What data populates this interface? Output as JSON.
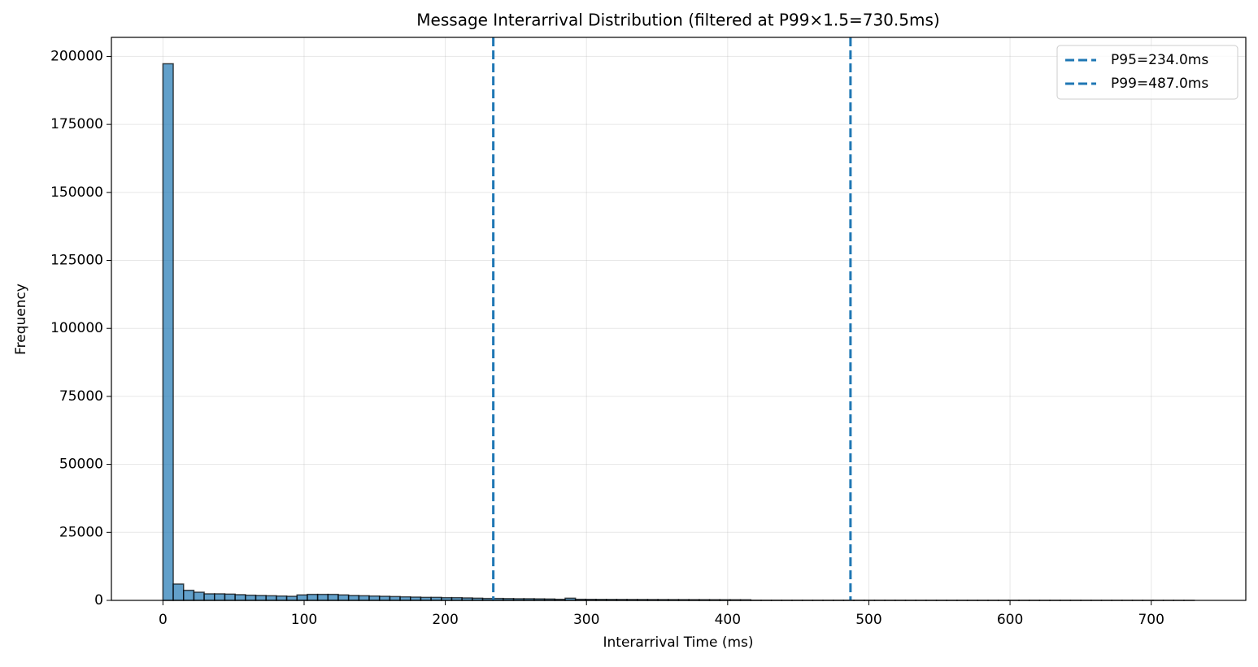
{
  "chart_data": {
    "type": "histogram",
    "title": "Message Interarrival Distribution (filtered at P99×1.5=730.5ms)",
    "xlabel": "Interarrival Time (ms)",
    "ylabel": "Frequency",
    "bins": [
      0,
      7.305,
      14.61,
      21.915,
      29.22,
      36.525,
      43.83,
      51.135,
      58.44,
      65.745,
      73.05,
      80.355,
      87.66,
      94.965,
      102.27,
      109.575,
      116.88,
      124.185,
      131.49,
      138.795,
      146.1,
      153.405,
      160.71,
      168.015,
      175.32,
      182.625,
      189.93,
      197.235,
      204.54,
      211.845,
      219.15,
      226.455,
      233.76,
      241.065,
      248.37,
      255.675,
      262.98,
      270.285,
      277.59,
      284.895,
      292.2,
      299.505,
      306.81,
      314.115,
      321.42,
      328.725,
      336.03,
      343.335,
      350.64,
      357.945,
      365.25,
      372.555,
      379.86,
      387.165,
      394.47,
      401.775,
      409.08,
      416.385,
      423.69,
      430.995,
      438.3,
      445.605,
      452.91,
      460.215,
      467.52,
      474.825,
      482.13,
      489.435,
      496.74,
      504.045,
      511.35,
      518.655,
      525.96,
      533.265,
      540.57,
      547.875,
      555.18,
      562.485,
      569.79,
      577.095,
      584.4,
      591.705,
      599.01,
      606.315,
      613.62,
      620.925,
      628.23,
      635.535,
      642.84,
      650.145,
      657.45,
      664.755,
      672.06,
      679.365,
      686.67,
      693.975,
      701.28,
      708.585,
      715.89,
      723.195,
      730.5
    ],
    "counts": [
      197300,
      6000,
      3700,
      3000,
      2400,
      2400,
      2300,
      2100,
      1900,
      1800,
      1700,
      1600,
      1500,
      2000,
      2200,
      2200,
      2200,
      2000,
      1800,
      1700,
      1600,
      1500,
      1400,
      1300,
      1200,
      1100,
      1100,
      1000,
      1000,
      900,
      800,
      700,
      700,
      650,
      600,
      600,
      550,
      500,
      400,
      800,
      400,
      380,
      360,
      350,
      340,
      330,
      320,
      310,
      300,
      290,
      280,
      270,
      260,
      250,
      240,
      230,
      220,
      60,
      58,
      56,
      54,
      52,
      50,
      48,
      46,
      44,
      42,
      40,
      39,
      38,
      37,
      36,
      35,
      34,
      33,
      32,
      31,
      30,
      29,
      28,
      27,
      26,
      25,
      24,
      23,
      22,
      21,
      20,
      19,
      18,
      17,
      16,
      15,
      14,
      13,
      12,
      11,
      10,
      9,
      8
    ],
    "color": "#1f77b4",
    "lines": [
      {
        "name": "P95=234.0ms",
        "x": 234.0,
        "color": "#1f77b4"
      },
      {
        "name": "P99=487.0ms",
        "x": 487.0,
        "color": "#1f77b4"
      }
    ],
    "xlim": [
      -36.5,
      767.0
    ],
    "xticks": [
      0,
      100,
      200,
      300,
      400,
      500,
      600,
      700
    ],
    "ylim": [
      0,
      207000
    ],
    "yticks": [
      0,
      25000,
      50000,
      75000,
      100000,
      125000,
      150000,
      175000,
      200000
    ],
    "grid": true,
    "legend": "upper right"
  }
}
